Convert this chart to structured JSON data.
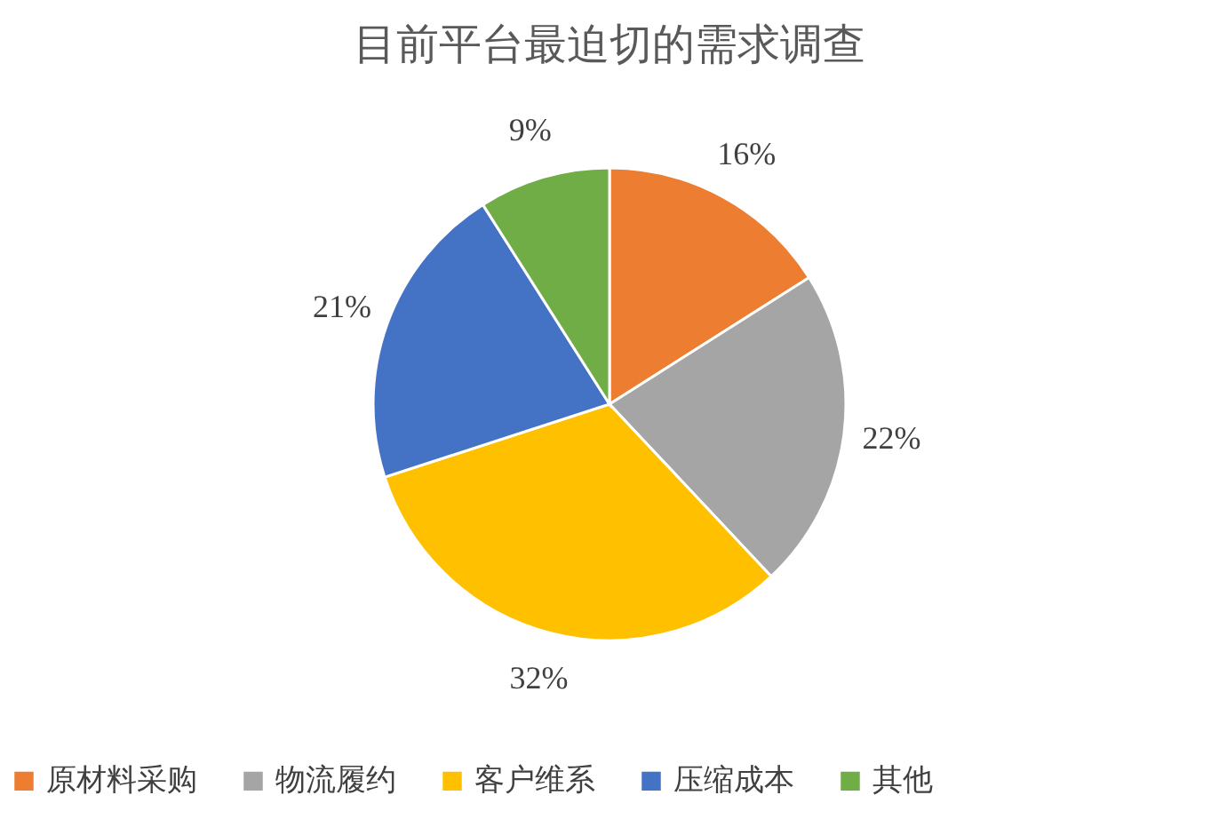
{
  "chart_data": {
    "type": "pie",
    "title": "目前平台最迫切的需求调查",
    "categories": [
      "原材料采购",
      "物流履约",
      "客户维系",
      "压缩成本",
      "其他"
    ],
    "values": [
      16,
      22,
      32,
      21,
      9
    ],
    "colors": [
      "#ed7d31",
      "#a5a5a5",
      "#ffc000",
      "#4472c4",
      "#70ad47"
    ],
    "value_labels": [
      "16%",
      "22%",
      "32%",
      "21%",
      "9%"
    ],
    "legend": "bottom"
  }
}
